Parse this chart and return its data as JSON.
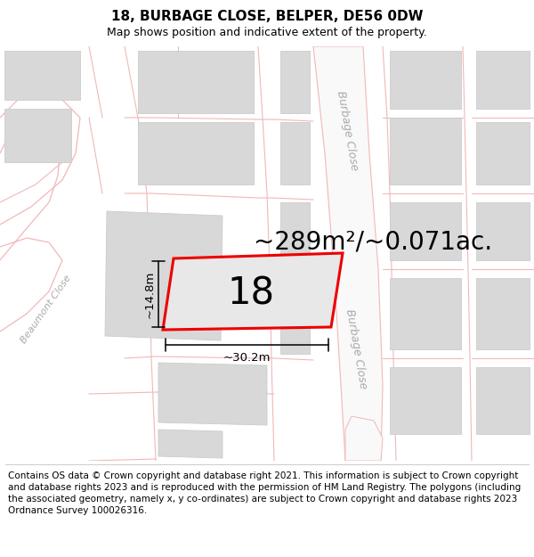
{
  "title": "18, BURBAGE CLOSE, BELPER, DE56 0DW",
  "subtitle": "Map shows position and indicative extent of the property.",
  "footer": "Contains OS data © Crown copyright and database right 2021. This information is subject to Crown copyright and database rights 2023 and is reproduced with the permission of HM Land Registry. The polygons (including the associated geometry, namely x, y co-ordinates) are subject to Crown copyright and database rights 2023 Ordnance Survey 100026316.",
  "area_label": "~289m²/~0.071ac.",
  "property_number": "18",
  "dim_width_label": "~30.2m",
  "dim_height_label": "~14.8m",
  "map_bg": "#ffffff",
  "road_line_color": "#f0b8b8",
  "road_fill_color": "#f8f8f8",
  "burbage_road_color": "#f0f0f0",
  "building_fill": "#d8d8d8",
  "building_edge": "#cccccc",
  "property_fill": "#e8e8e8",
  "property_edge": "#ee0000",
  "dim_line_color": "#111111",
  "road_label_color": "#aaaaaa",
  "title_fontsize": 11,
  "subtitle_fontsize": 9,
  "footer_fontsize": 7.5,
  "area_label_fontsize": 20,
  "number_fontsize": 30,
  "dim_label_fontsize": 9.5,
  "road_label_fontsize": 9
}
